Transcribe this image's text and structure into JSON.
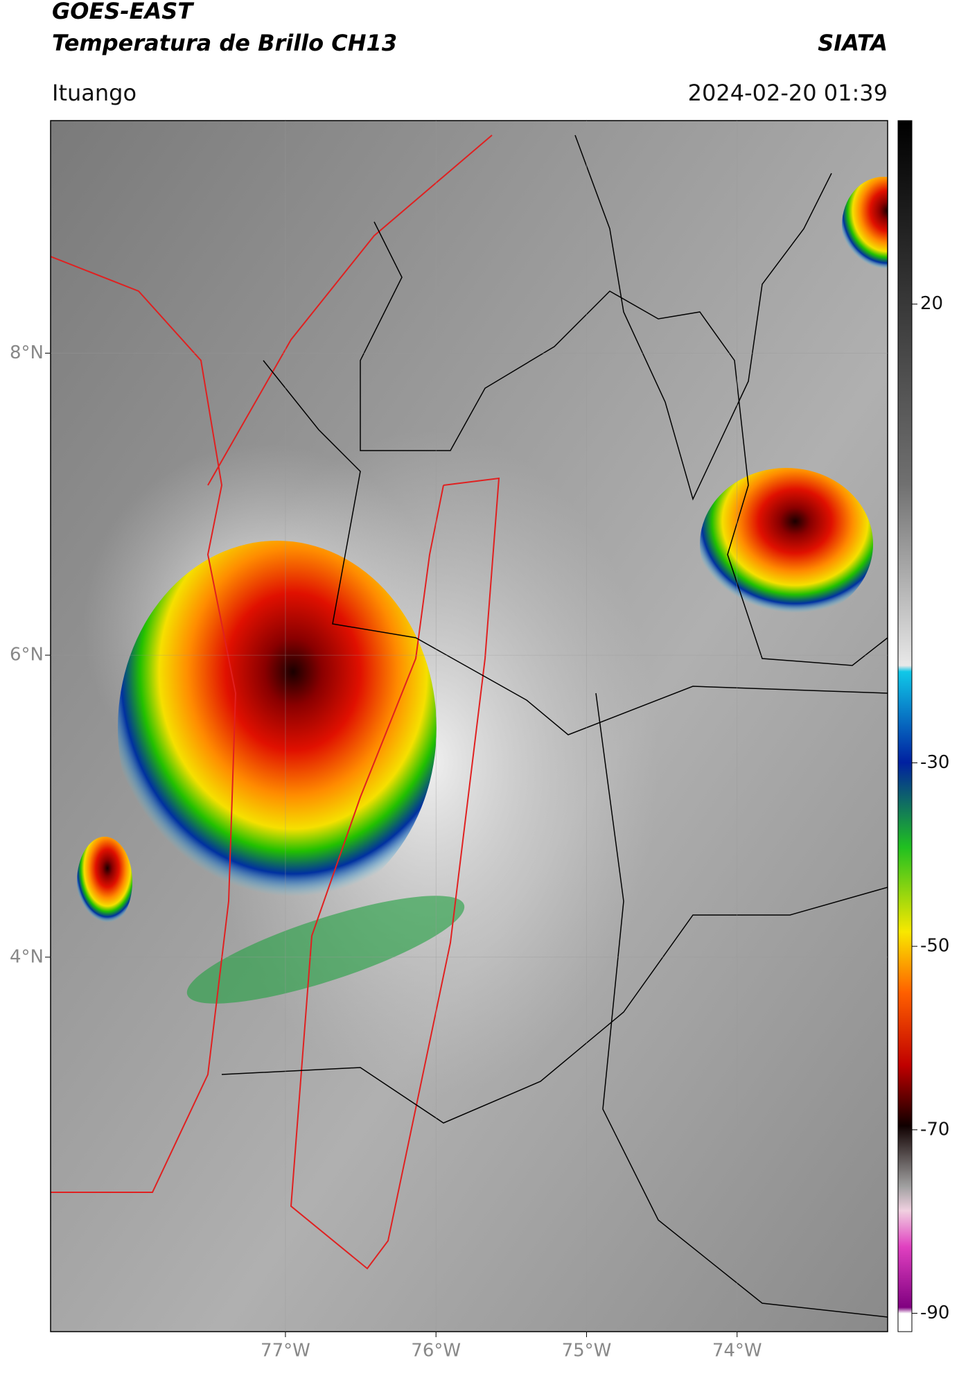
{
  "header": {
    "title": "GOES-EAST",
    "subtitle": "Temperatura de Brillo CH13",
    "source": "SIATA",
    "location": "Ituango",
    "datetime": "2024-02-20 01:39"
  },
  "map": {
    "lat_range": [
      1.52,
      9.54
    ],
    "lon_range": [
      -78.56,
      -73.0
    ],
    "lat_ticks": [
      {
        "value": 8,
        "label": "8°N"
      },
      {
        "value": 6,
        "label": "6°N"
      },
      {
        "value": 4,
        "label": "4°N"
      }
    ],
    "lon_ticks": [
      {
        "value": -77,
        "label": "77°W"
      },
      {
        "value": -76,
        "label": "76°W"
      },
      {
        "value": -75,
        "label": "75°W"
      },
      {
        "value": -74,
        "label": "74°W"
      }
    ]
  },
  "colorbar": {
    "lim": [
      -92,
      40
    ],
    "ticks": [
      20,
      -30,
      -50,
      -70,
      -90
    ]
  }
}
